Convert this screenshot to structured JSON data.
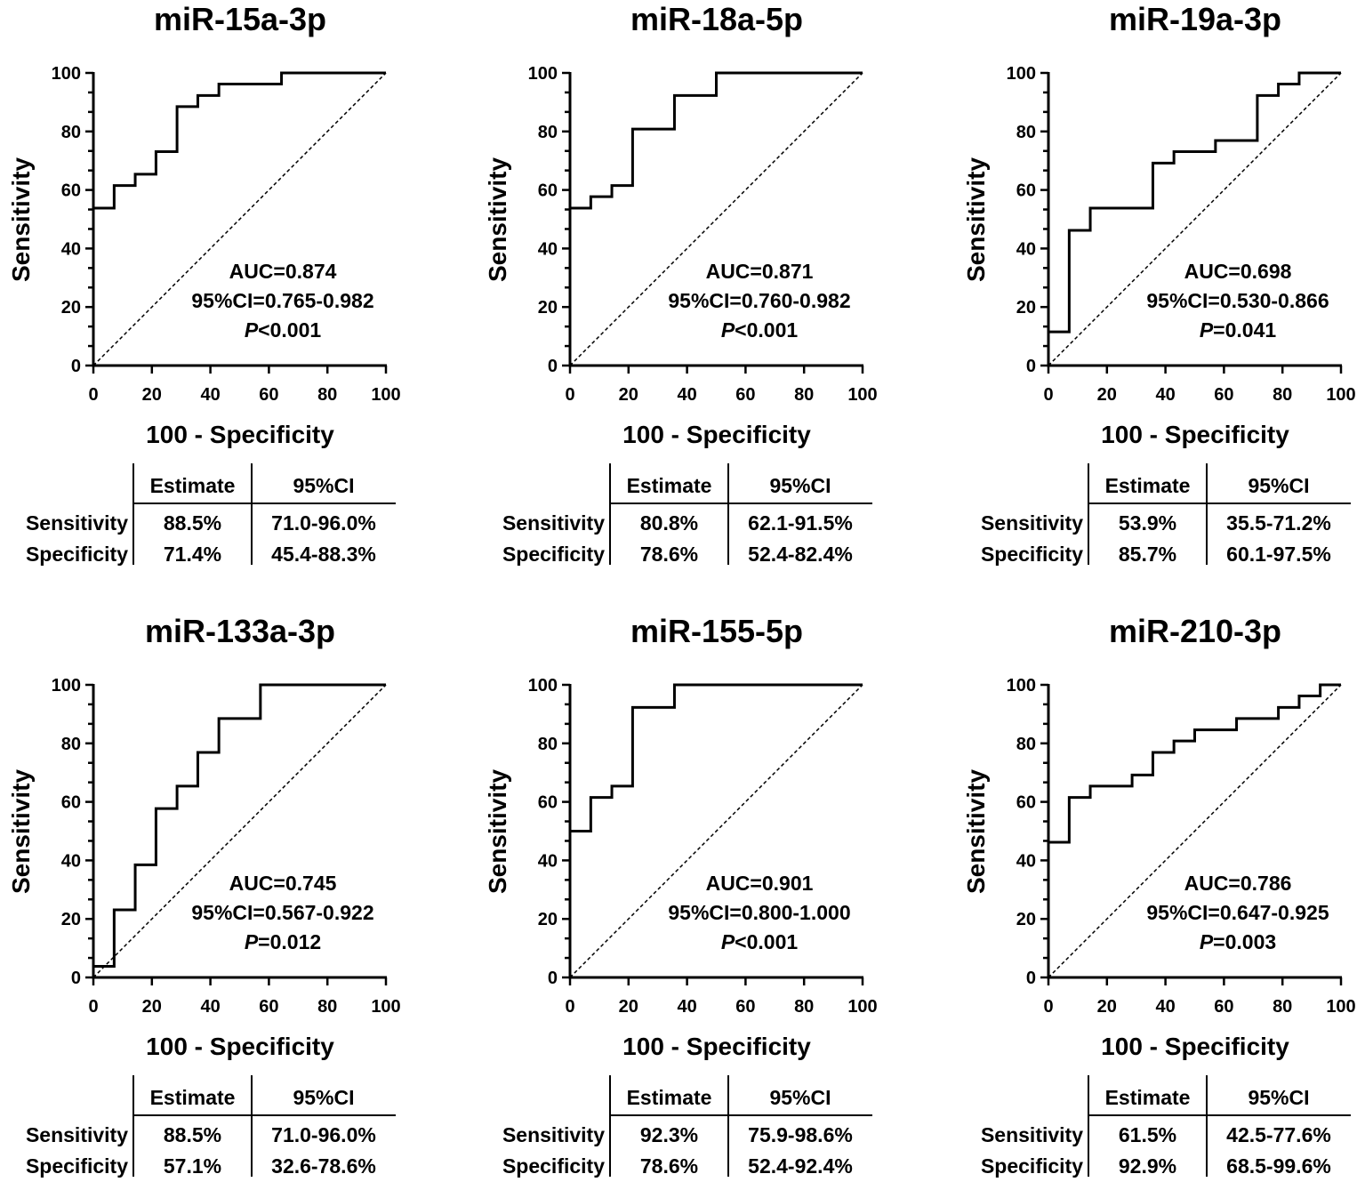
{
  "chart_data": [
    {
      "type": "line",
      "title": "miR-15a-3p",
      "xlabel": "100 - Specificity",
      "ylabel": "Sensitivity",
      "xlim": [
        0,
        100
      ],
      "ylim": [
        0,
        100
      ],
      "xticks": [
        "0",
        "20",
        "40",
        "60",
        "80",
        "100"
      ],
      "yticks": [
        "0",
        "20",
        "40",
        "60",
        "80",
        "100"
      ],
      "roc": [
        [
          0,
          53.8
        ],
        [
          7.1,
          53.8
        ],
        [
          7.1,
          61.5
        ],
        [
          14.3,
          61.5
        ],
        [
          14.3,
          65.4
        ],
        [
          21.4,
          65.4
        ],
        [
          21.4,
          73.1
        ],
        [
          28.6,
          73.1
        ],
        [
          28.6,
          88.5
        ],
        [
          35.7,
          88.5
        ],
        [
          35.7,
          92.3
        ],
        [
          42.9,
          92.3
        ],
        [
          42.9,
          96.2
        ],
        [
          64.3,
          96.2
        ],
        [
          64.3,
          100
        ],
        [
          100,
          100
        ]
      ],
      "auc": "AUC=0.874",
      "ci": "95%CI=0.765-0.982",
      "p_label": "P",
      "p_value": "<0.001",
      "table": {
        "headers": [
          "Estimate",
          "95%CI"
        ],
        "rows": [
          [
            "Sensitivity",
            "88.5%",
            "71.0-96.0%"
          ],
          [
            "Specificity",
            "71.4%",
            "45.4-88.3%"
          ]
        ]
      }
    },
    {
      "type": "line",
      "title": "miR-18a-5p",
      "xlabel": "100 - Specificity",
      "ylabel": "Sensitivity",
      "xlim": [
        0,
        100
      ],
      "ylim": [
        0,
        100
      ],
      "xticks": [
        "0",
        "20",
        "40",
        "60",
        "80",
        "100"
      ],
      "yticks": [
        "0",
        "20",
        "40",
        "60",
        "80",
        "100"
      ],
      "roc": [
        [
          0,
          53.8
        ],
        [
          7.1,
          53.8
        ],
        [
          7.1,
          57.7
        ],
        [
          14.3,
          57.7
        ],
        [
          14.3,
          61.5
        ],
        [
          21.4,
          61.5
        ],
        [
          21.4,
          80.8
        ],
        [
          35.7,
          80.8
        ],
        [
          35.7,
          92.3
        ],
        [
          50,
          92.3
        ],
        [
          50,
          100
        ],
        [
          100,
          100
        ]
      ],
      "auc": "AUC=0.871",
      "ci": "95%CI=0.760-0.982",
      "p_label": "P",
      "p_value": "<0.001",
      "table": {
        "headers": [
          "Estimate",
          "95%CI"
        ],
        "rows": [
          [
            "Sensitivity",
            "80.8%",
            "62.1-91.5%"
          ],
          [
            "Specificity",
            "78.6%",
            "52.4-82.4%"
          ]
        ]
      }
    },
    {
      "type": "line",
      "title": "miR-19a-3p",
      "xlabel": "100 - Specificity",
      "ylabel": "Sensitivity",
      "xlim": [
        0,
        100
      ],
      "ylim": [
        0,
        100
      ],
      "xticks": [
        "0",
        "20",
        "40",
        "60",
        "80",
        "100"
      ],
      "yticks": [
        "0",
        "20",
        "40",
        "60",
        "80",
        "100"
      ],
      "roc": [
        [
          0,
          11.5
        ],
        [
          7.1,
          11.5
        ],
        [
          7.1,
          46.2
        ],
        [
          14.3,
          46.2
        ],
        [
          14.3,
          53.8
        ],
        [
          35.7,
          53.8
        ],
        [
          35.7,
          69.2
        ],
        [
          42.9,
          69.2
        ],
        [
          42.9,
          73.1
        ],
        [
          57.1,
          73.1
        ],
        [
          57.1,
          76.9
        ],
        [
          71.4,
          76.9
        ],
        [
          71.4,
          92.3
        ],
        [
          78.6,
          92.3
        ],
        [
          78.6,
          96.2
        ],
        [
          85.7,
          96.2
        ],
        [
          85.7,
          100
        ],
        [
          100,
          100
        ]
      ],
      "auc": "AUC=0.698",
      "ci": "95%CI=0.530-0.866",
      "p_label": "P",
      "p_value": "=0.041",
      "table": {
        "headers": [
          "Estimate",
          "95%CI"
        ],
        "rows": [
          [
            "Sensitivity",
            "53.9%",
            "35.5-71.2%"
          ],
          [
            "Specificity",
            "85.7%",
            "60.1-97.5%"
          ]
        ]
      }
    },
    {
      "type": "line",
      "title": "miR-133a-3p",
      "xlabel": "100 - Specificity",
      "ylabel": "Sensitivity",
      "xlim": [
        0,
        100
      ],
      "ylim": [
        0,
        100
      ],
      "xticks": [
        "0",
        "20",
        "40",
        "60",
        "80",
        "100"
      ],
      "yticks": [
        "0",
        "20",
        "40",
        "60",
        "80",
        "100"
      ],
      "roc": [
        [
          0,
          3.8
        ],
        [
          7.1,
          3.8
        ],
        [
          7.1,
          23.1
        ],
        [
          14.3,
          23.1
        ],
        [
          14.3,
          38.5
        ],
        [
          21.4,
          38.5
        ],
        [
          21.4,
          57.7
        ],
        [
          28.6,
          57.7
        ],
        [
          28.6,
          65.4
        ],
        [
          35.7,
          65.4
        ],
        [
          35.7,
          76.9
        ],
        [
          42.9,
          76.9
        ],
        [
          42.9,
          88.5
        ],
        [
          57.1,
          88.5
        ],
        [
          57.1,
          100
        ],
        [
          100,
          100
        ]
      ],
      "auc": "AUC=0.745",
      "ci": "95%CI=0.567-0.922",
      "p_label": "P",
      "p_value": "=0.012",
      "table": {
        "headers": [
          "Estimate",
          "95%CI"
        ],
        "rows": [
          [
            "Sensitivity",
            "88.5%",
            "71.0-96.0%"
          ],
          [
            "Specificity",
            "57.1%",
            "32.6-78.6%"
          ]
        ]
      }
    },
    {
      "type": "line",
      "title": "miR-155-5p",
      "xlabel": "100 - Specificity",
      "ylabel": "Sensitivity",
      "xlim": [
        0,
        100
      ],
      "ylim": [
        0,
        100
      ],
      "xticks": [
        "0",
        "20",
        "40",
        "60",
        "80",
        "100"
      ],
      "yticks": [
        "0",
        "20",
        "40",
        "60",
        "80",
        "100"
      ],
      "roc": [
        [
          0,
          50
        ],
        [
          7.1,
          50
        ],
        [
          7.1,
          61.5
        ],
        [
          14.3,
          61.5
        ],
        [
          14.3,
          65.4
        ],
        [
          21.4,
          65.4
        ],
        [
          21.4,
          92.3
        ],
        [
          35.7,
          92.3
        ],
        [
          35.7,
          100
        ],
        [
          100,
          100
        ]
      ],
      "auc": "AUC=0.901",
      "ci": "95%CI=0.800-1.000",
      "p_label": "P",
      "p_value": "<0.001",
      "table": {
        "headers": [
          "Estimate",
          "95%CI"
        ],
        "rows": [
          [
            "Sensitivity",
            "92.3%",
            "75.9-98.6%"
          ],
          [
            "Specificity",
            "78.6%",
            "52.4-92.4%"
          ]
        ]
      }
    },
    {
      "type": "line",
      "title": "miR-210-3p",
      "xlabel": "100 - Specificity",
      "ylabel": "Sensitivity",
      "xlim": [
        0,
        100
      ],
      "ylim": [
        0,
        100
      ],
      "xticks": [
        "0",
        "20",
        "40",
        "60",
        "80",
        "100"
      ],
      "yticks": [
        "0",
        "20",
        "40",
        "60",
        "80",
        "100"
      ],
      "roc": [
        [
          0,
          46.2
        ],
        [
          7.1,
          46.2
        ],
        [
          7.1,
          61.5
        ],
        [
          14.3,
          61.5
        ],
        [
          14.3,
          65.4
        ],
        [
          28.6,
          65.4
        ],
        [
          28.6,
          69.2
        ],
        [
          35.7,
          69.2
        ],
        [
          35.7,
          76.9
        ],
        [
          42.9,
          76.9
        ],
        [
          42.9,
          80.8
        ],
        [
          50,
          80.8
        ],
        [
          50,
          84.6
        ],
        [
          64.3,
          84.6
        ],
        [
          64.3,
          88.5
        ],
        [
          78.6,
          88.5
        ],
        [
          78.6,
          92.3
        ],
        [
          85.7,
          92.3
        ],
        [
          85.7,
          96.2
        ],
        [
          92.9,
          96.2
        ],
        [
          92.9,
          100
        ],
        [
          100,
          100
        ]
      ],
      "auc": "AUC=0.786",
      "ci": "95%CI=0.647-0.925",
      "p_label": "P",
      "p_value": "=0.003",
      "table": {
        "headers": [
          "Estimate",
          "95%CI"
        ],
        "rows": [
          [
            "Sensitivity",
            "61.5%",
            "42.5-77.6%"
          ],
          [
            "Specificity",
            "92.9%",
            "68.5-99.6%"
          ]
        ]
      }
    }
  ]
}
